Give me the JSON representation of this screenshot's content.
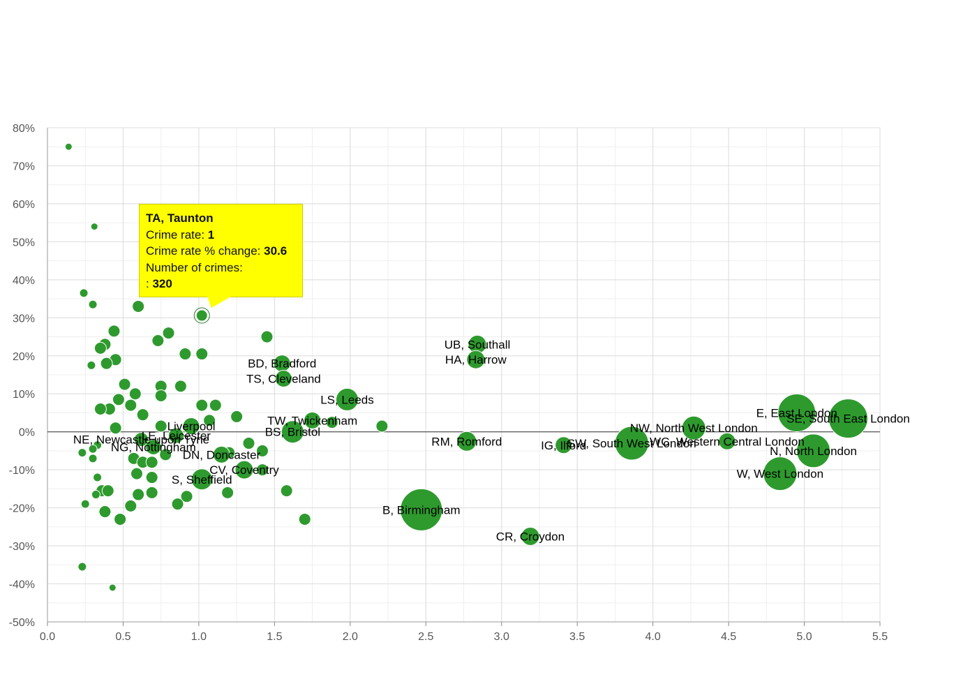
{
  "colors": {
    "bubble": "#2e9a2e",
    "bubble_stroke": "#ffffff",
    "grid": "#dddddd",
    "zero_line": "#333333",
    "tooltip_bg": "#ffff00"
  },
  "chart_data": {
    "type": "scatter",
    "xlim": [
      0,
      5.5
    ],
    "ylim": [
      -50,
      80
    ],
    "x_ticks": [
      "0.0",
      "0.5",
      "1.0",
      "1.5",
      "2.0",
      "2.5",
      "3.0",
      "3.5",
      "4.0",
      "4.5",
      "5.0",
      "5.5"
    ],
    "y_ticks": [
      "-50%",
      "-40%",
      "-30%",
      "-20%",
      "-10%",
      "0%",
      "10%",
      "20%",
      "30%",
      "40%",
      "50%",
      "60%",
      "70%",
      "80%"
    ],
    "grid": true,
    "labeled_points": [
      {
        "label": "UB, Southall",
        "x": 2.84,
        "y": 23,
        "r": 13
      },
      {
        "label": "HA, Harrow",
        "x": 2.83,
        "y": 19,
        "r": 13
      },
      {
        "label": "BD, Bradford",
        "x": 1.55,
        "y": 18,
        "r": 12
      },
      {
        "label": "TS, Cleveland",
        "x": 1.56,
        "y": 14,
        "r": 12
      },
      {
        "label": "LS, Leeds",
        "x": 1.98,
        "y": 8.5,
        "r": 16
      },
      {
        "label": "TW, Twickenham",
        "x": 1.75,
        "y": 3,
        "r": 12
      },
      {
        "label": "BS, Bristol",
        "x": 1.62,
        "y": 0,
        "r": 16
      },
      {
        "label": "Liverpool",
        "x": 0.95,
        "y": 1.5,
        "r": 12
      },
      {
        "label": "LE, Leicester",
        "x": 0.85,
        "y": -1,
        "r": 11
      },
      {
        "label": "NE, Newcastle upon Tyne",
        "x": 0.62,
        "y": -2,
        "r": 10
      },
      {
        "label": "NG, Nottingham",
        "x": 0.7,
        "y": -4,
        "r": 11
      },
      {
        "label": "DN, Doncaster",
        "x": 1.15,
        "y": -6,
        "r": 12
      },
      {
        "label": "CV, Coventry",
        "x": 1.3,
        "y": -10,
        "r": 13
      },
      {
        "label": "S, Sheffield",
        "x": 1.02,
        "y": -12.5,
        "r": 15
      },
      {
        "label": "B, Birmingham",
        "x": 2.47,
        "y": -20.5,
        "r": 30
      },
      {
        "label": "RM, Romford",
        "x": 2.77,
        "y": -2.5,
        "r": 14
      },
      {
        "label": "CR, Croydon",
        "x": 3.19,
        "y": -27.5,
        "r": 13
      },
      {
        "label": "IG, Ilford",
        "x": 3.41,
        "y": -3.5,
        "r": 12
      },
      {
        "label": "SW, South West London",
        "x": 3.86,
        "y": -3,
        "r": 24
      },
      {
        "label": "NW, North West London",
        "x": 4.27,
        "y": 1,
        "r": 17
      },
      {
        "label": "WC, Western Central London",
        "x": 4.49,
        "y": -2.5,
        "r": 12
      },
      {
        "label": "E, East London",
        "x": 4.95,
        "y": 5,
        "r": 27
      },
      {
        "label": "SE, South East London",
        "x": 5.29,
        "y": 3.5,
        "r": 28
      },
      {
        "label": "N, North London",
        "x": 5.06,
        "y": -5,
        "r": 24
      },
      {
        "label": "W, West London",
        "x": 4.84,
        "y": -11,
        "r": 24
      }
    ],
    "unlabeled_points": [
      [
        0.14,
        75
      ],
      [
        0.31,
        54
      ],
      [
        0.24,
        36.5
      ],
      [
        0.3,
        33.5
      ],
      [
        0.6,
        33
      ],
      [
        0.44,
        26.5
      ],
      [
        0.8,
        26
      ],
      [
        0.73,
        24
      ],
      [
        0.38,
        23
      ],
      [
        0.35,
        22
      ],
      [
        0.45,
        19
      ],
      [
        0.39,
        18
      ],
      [
        0.29,
        17.5
      ],
      [
        0.91,
        20.5
      ],
      [
        1.02,
        20.5
      ],
      [
        1.45,
        25
      ],
      [
        0.51,
        12.5
      ],
      [
        0.58,
        10
      ],
      [
        0.75,
        12
      ],
      [
        0.88,
        12
      ],
      [
        0.75,
        9.5
      ],
      [
        0.47,
        8.5
      ],
      [
        0.55,
        7
      ],
      [
        0.41,
        6
      ],
      [
        0.35,
        6
      ],
      [
        0.63,
        4.5
      ],
      [
        1.02,
        7
      ],
      [
        1.11,
        7
      ],
      [
        1.25,
        4
      ],
      [
        1.07,
        3
      ],
      [
        0.45,
        1
      ],
      [
        0.75,
        1.5
      ],
      [
        1.88,
        2.5
      ],
      [
        2.21,
        1.5
      ],
      [
        0.33,
        -3.5
      ],
      [
        0.3,
        -4.5
      ],
      [
        0.23,
        -5.5
      ],
      [
        0.3,
        -7
      ],
      [
        0.57,
        -7
      ],
      [
        0.63,
        -8
      ],
      [
        0.69,
        -8
      ],
      [
        0.78,
        -6
      ],
      [
        0.59,
        -11
      ],
      [
        0.69,
        -12
      ],
      [
        0.33,
        -12
      ],
      [
        0.36,
        -15.5
      ],
      [
        0.4,
        -15.5
      ],
      [
        0.32,
        -16.5
      ],
      [
        0.6,
        -16.5
      ],
      [
        0.69,
        -16
      ],
      [
        0.92,
        -17
      ],
      [
        1.19,
        -16
      ],
      [
        1.58,
        -15.5
      ],
      [
        0.25,
        -19
      ],
      [
        0.55,
        -19.5
      ],
      [
        0.86,
        -19
      ],
      [
        0.38,
        -21
      ],
      [
        0.48,
        -23
      ],
      [
        1.7,
        -23
      ],
      [
        1.42,
        -5
      ],
      [
        1.33,
        -3
      ],
      [
        1.42,
        -10
      ],
      [
        1.2,
        -5.5
      ],
      [
        0.23,
        -35.5
      ],
      [
        0.43,
        -41
      ]
    ],
    "highlighted_point": {
      "x": 1.02,
      "y": 30.6
    }
  },
  "tooltip": {
    "title": "TA, Taunton",
    "crime_rate_label": "Crime rate: ",
    "crime_rate_value": "1",
    "change_label": "Crime rate % change: ",
    "change_value": "30.6",
    "crimes_label": "Number of crimes:",
    "crimes_prefix": ": ",
    "crimes_value": "320"
  }
}
